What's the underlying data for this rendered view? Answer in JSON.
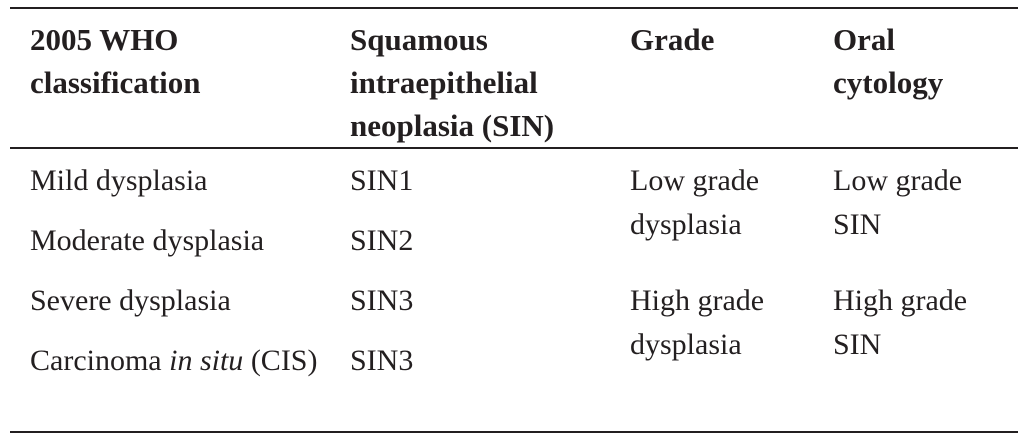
{
  "table": {
    "headers": [
      "2005 WHO classification",
      "Squamous intraepithelial neoplasia (SIN)",
      "Grade",
      "Oral cytology"
    ],
    "rows": [
      {
        "classification": [
          "Mild dysplasia"
        ],
        "sin": "SIN1"
      },
      {
        "classification": [
          "Moderate dysplasia"
        ],
        "sin": "SIN2"
      },
      {
        "classification": [
          "Severe dysplasia"
        ],
        "sin": "SIN3"
      },
      {
        "classification": [
          "Carcinoma ",
          "in situ",
          " (CIS)"
        ],
        "sin": "SIN3"
      }
    ],
    "groups": [
      {
        "grade": "Low grade dysplasia",
        "cytology": "Low grade SIN"
      },
      {
        "grade": "High grade dysplasia",
        "cytology": "High grade SIN"
      }
    ]
  }
}
